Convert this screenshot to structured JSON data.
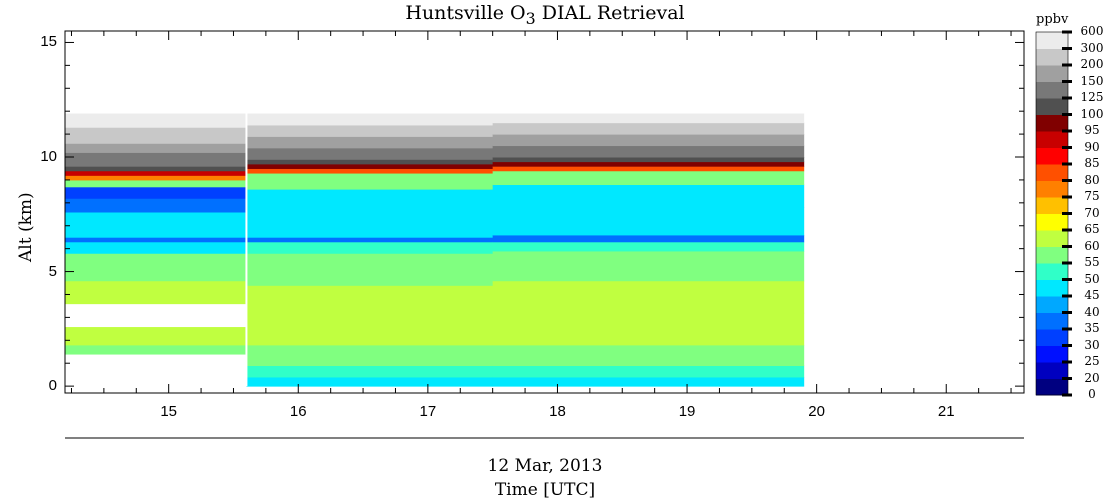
{
  "chart_data": {
    "type": "heatmap",
    "title": "Huntsville O",
    "title_subscript": "3",
    "title_suffix": " DIAL Retrieval",
    "ylabel": "Alt (km)",
    "xlabel": "Time [UTC]",
    "date_label": "12 Mar, 2013",
    "xlim": [
      14.2,
      21.6
    ],
    "ylim": [
      -0.3,
      15.5
    ],
    "xticks": [
      "15",
      "16",
      "17",
      "18",
      "19",
      "20",
      "21"
    ],
    "xtick_values": [
      15,
      16,
      17,
      18,
      19,
      20,
      21
    ],
    "yticks": [
      "0",
      "5",
      "10",
      "15"
    ],
    "ytick_values": [
      0,
      5,
      10,
      15
    ],
    "colorbar": {
      "title": "ppbv",
      "levels": [
        "0",
        "20",
        "25",
        "30",
        "35",
        "40",
        "45",
        "50",
        "55",
        "60",
        "65",
        "70",
        "75",
        "80",
        "85",
        "90",
        "95",
        "100",
        "125",
        "150",
        "200",
        "300",
        "600"
      ],
      "colors": [
        "#000080",
        "#0000c0",
        "#0010ff",
        "#0040ff",
        "#0070ff",
        "#00a8ff",
        "#00e8ff",
        "#30ffc8",
        "#80ff80",
        "#c0ff40",
        "#ffff00",
        "#ffc000",
        "#ff8000",
        "#ff5000",
        "#ff0000",
        "#c80000",
        "#800000",
        "#505050",
        "#787878",
        "#a0a0a0",
        "#c8c8c8",
        "#ececec"
      ]
    },
    "data_extent": {
      "time": [
        14.2,
        19.9
      ],
      "altitude": [
        0,
        11.9
      ]
    },
    "gap_time": 15.6,
    "profiles": [
      {
        "t": 14.2,
        "layers": [
          [
            0,
            1.4,
            "missing"
          ],
          [
            1.4,
            1.8,
            55
          ],
          [
            1.8,
            2.6,
            60
          ],
          [
            2.6,
            3.6,
            "missing"
          ],
          [
            3.6,
            4.6,
            60
          ],
          [
            4.6,
            5.8,
            55
          ],
          [
            5.8,
            6.3,
            45
          ],
          [
            6.3,
            6.5,
            35
          ],
          [
            6.5,
            7.6,
            45
          ],
          [
            7.6,
            8.2,
            35
          ],
          [
            8.2,
            8.7,
            30
          ],
          [
            8.7,
            9.0,
            55
          ],
          [
            9.0,
            9.2,
            75
          ],
          [
            9.2,
            9.4,
            90
          ],
          [
            9.4,
            9.6,
            100
          ],
          [
            9.6,
            10.2,
            125
          ],
          [
            10.2,
            10.6,
            150
          ],
          [
            10.6,
            11.3,
            200
          ],
          [
            11.3,
            11.9,
            300
          ]
        ]
      },
      {
        "t": 15.6,
        "layers": [
          [
            0,
            0.4,
            45
          ],
          [
            0.4,
            0.9,
            50
          ],
          [
            0.9,
            1.8,
            55
          ],
          [
            1.8,
            3.0,
            60
          ],
          [
            3.0,
            4.4,
            60
          ],
          [
            4.4,
            5.8,
            55
          ],
          [
            5.8,
            6.3,
            50
          ],
          [
            6.3,
            6.5,
            35
          ],
          [
            6.5,
            7.6,
            45
          ],
          [
            7.6,
            8.6,
            45
          ],
          [
            8.6,
            9.3,
            55
          ],
          [
            9.3,
            9.5,
            80
          ],
          [
            9.5,
            9.7,
            95
          ],
          [
            9.7,
            9.9,
            100
          ],
          [
            9.9,
            10.4,
            125
          ],
          [
            10.4,
            10.9,
            150
          ],
          [
            10.9,
            11.4,
            200
          ],
          [
            11.4,
            11.9,
            300
          ]
        ]
      },
      {
        "t": 17.5,
        "layers": [
          [
            0,
            0.4,
            45
          ],
          [
            0.4,
            0.9,
            50
          ],
          [
            0.9,
            1.8,
            55
          ],
          [
            1.8,
            3.2,
            60
          ],
          [
            3.2,
            4.6,
            60
          ],
          [
            4.6,
            5.9,
            55
          ],
          [
            5.9,
            6.3,
            50
          ],
          [
            6.3,
            6.6,
            35
          ],
          [
            6.6,
            7.8,
            45
          ],
          [
            7.8,
            8.8,
            45
          ],
          [
            8.8,
            9.4,
            55
          ],
          [
            9.4,
            9.6,
            80
          ],
          [
            9.6,
            9.8,
            95
          ],
          [
            9.8,
            10.0,
            100
          ],
          [
            10.0,
            10.5,
            125
          ],
          [
            10.5,
            11.0,
            150
          ],
          [
            11.0,
            11.5,
            200
          ],
          [
            11.5,
            11.9,
            300
          ]
        ]
      },
      {
        "t": 19.9,
        "layers": [
          [
            0,
            0.4,
            45
          ],
          [
            0.4,
            0.9,
            50
          ],
          [
            0.9,
            1.8,
            55
          ],
          [
            1.8,
            3.4,
            60
          ],
          [
            3.4,
            4.8,
            60
          ],
          [
            4.8,
            6.0,
            55
          ],
          [
            6.0,
            6.3,
            50
          ],
          [
            6.3,
            6.6,
            35
          ],
          [
            6.6,
            7.6,
            50
          ],
          [
            7.6,
            9.0,
            45
          ],
          [
            9.0,
            9.6,
            55
          ],
          [
            9.6,
            9.8,
            80
          ],
          [
            9.8,
            10.0,
            95
          ],
          [
            10.0,
            10.2,
            100
          ],
          [
            10.2,
            10.7,
            125
          ],
          [
            10.7,
            11.1,
            150
          ],
          [
            11.1,
            11.5,
            200
          ],
          [
            11.5,
            11.9,
            300
          ]
        ]
      }
    ]
  }
}
